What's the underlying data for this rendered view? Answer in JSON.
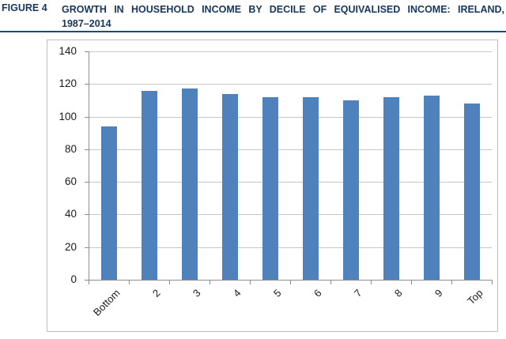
{
  "figure": {
    "label": "FIGURE 4",
    "title_line1": "GROWTH IN HOUSEHOLD INCOME BY DECILE OF EQUIVALISED INCOME: IRELAND,",
    "title_line2": "1987–2014"
  },
  "colors": {
    "title_text": "#17365D",
    "title_rule": "#1F497D",
    "bar": "#4F81BD",
    "gridline": "#C6C6C6",
    "axis": "#8E8E8E",
    "chart_border": "#BFBFBF",
    "tick_label": "#1A1A1A"
  },
  "chart_data": {
    "type": "bar",
    "title": "",
    "xlabel": "",
    "ylabel": "",
    "categories": [
      "Bottom",
      "2",
      "3",
      "4",
      "5",
      "6",
      "7",
      "8",
      "9",
      "Top"
    ],
    "values": [
      94,
      116,
      117,
      114,
      112,
      112,
      110,
      112,
      113,
      108
    ],
    "ylim": [
      0,
      140
    ],
    "yticks": [
      0,
      20,
      40,
      60,
      80,
      100,
      120,
      140
    ],
    "grid": true,
    "legend": false,
    "bar_gap_ratio": 0.6
  }
}
